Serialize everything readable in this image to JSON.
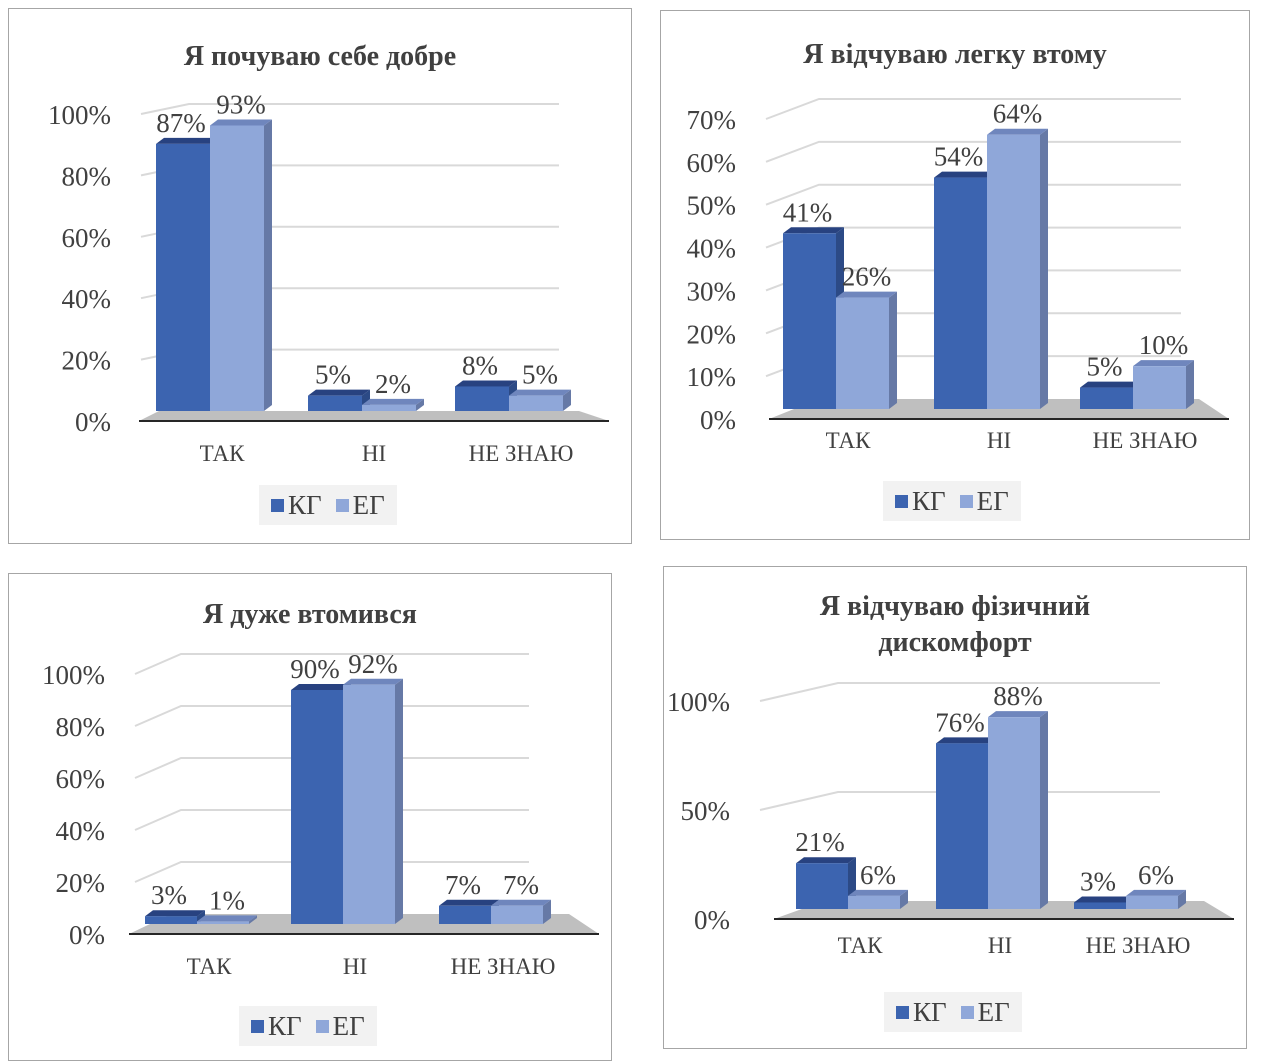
{
  "colors": {
    "kg": "#3c64b0",
    "kg_dark": "#2c4a86",
    "kg_top": "#284280",
    "eg": "#8fa7d9",
    "eg_dark": "#6679a6",
    "eg_top": "#6f86bd",
    "floor": "#bfbfbf",
    "grid": "#d9d9d9"
  },
  "chart_data": [
    {
      "type": "bar",
      "title": "Я почуваю себе добре",
      "categories": [
        "ТАК",
        "НІ",
        "НЕ ЗНАЮ"
      ],
      "series": [
        {
          "name": "КГ",
          "values": [
            87,
            5,
            8
          ],
          "labels": [
            "87%",
            "5%",
            "8%"
          ]
        },
        {
          "name": "ЕГ",
          "values": [
            93,
            2,
            5
          ],
          "labels": [
            "93%",
            "2%",
            "5%"
          ]
        }
      ],
      "yticks": [
        "0%",
        "20%",
        "40%",
        "60%",
        "80%",
        "100%"
      ],
      "ylim": [
        0,
        100
      ],
      "grid": true,
      "legend": "bottom"
    },
    {
      "type": "bar",
      "title": "Я відчуваю легку втому",
      "categories": [
        "ТАК",
        "НІ",
        "НЕ ЗНАЮ"
      ],
      "series": [
        {
          "name": "КГ",
          "values": [
            41,
            54,
            5
          ],
          "labels": [
            "41%",
            "54%",
            "5%"
          ]
        },
        {
          "name": "ЕГ",
          "values": [
            26,
            64,
            10
          ],
          "labels": [
            "26%",
            "64%",
            "10%"
          ]
        }
      ],
      "yticks": [
        "0%",
        "10%",
        "20%",
        "30%",
        "40%",
        "50%",
        "60%",
        "70%"
      ],
      "ylim": [
        0,
        70
      ],
      "grid": true,
      "legend": "bottom"
    },
    {
      "type": "bar",
      "title": "Я дуже втомився",
      "categories": [
        "ТАК",
        "НІ",
        "НЕ ЗНАЮ"
      ],
      "series": [
        {
          "name": "КГ",
          "values": [
            3,
            90,
            7
          ],
          "labels": [
            "3%",
            "90%",
            "7%"
          ]
        },
        {
          "name": "ЕГ",
          "values": [
            1,
            92,
            7
          ],
          "labels": [
            "1%",
            "92%",
            "7%"
          ]
        }
      ],
      "yticks": [
        "0%",
        "20%",
        "40%",
        "60%",
        "80%",
        "100%"
      ],
      "ylim": [
        0,
        100
      ],
      "grid": true,
      "legend": "bottom"
    },
    {
      "type": "bar",
      "title": [
        "Я відчуваю фізичний",
        "дискомфорт"
      ],
      "categories": [
        "ТАК",
        "НІ",
        "НЕ ЗНАЮ"
      ],
      "series": [
        {
          "name": "КГ",
          "values": [
            21,
            76,
            3
          ],
          "labels": [
            "21%",
            "76%",
            "3%"
          ]
        },
        {
          "name": "ЕГ",
          "values": [
            6,
            88,
            6
          ],
          "labels": [
            "6%",
            "88%",
            "6%"
          ]
        }
      ],
      "yticks": [
        "0%",
        "50%",
        "100%"
      ],
      "ylim": [
        0,
        100
      ],
      "grid": true,
      "legend": "bottom"
    }
  ]
}
